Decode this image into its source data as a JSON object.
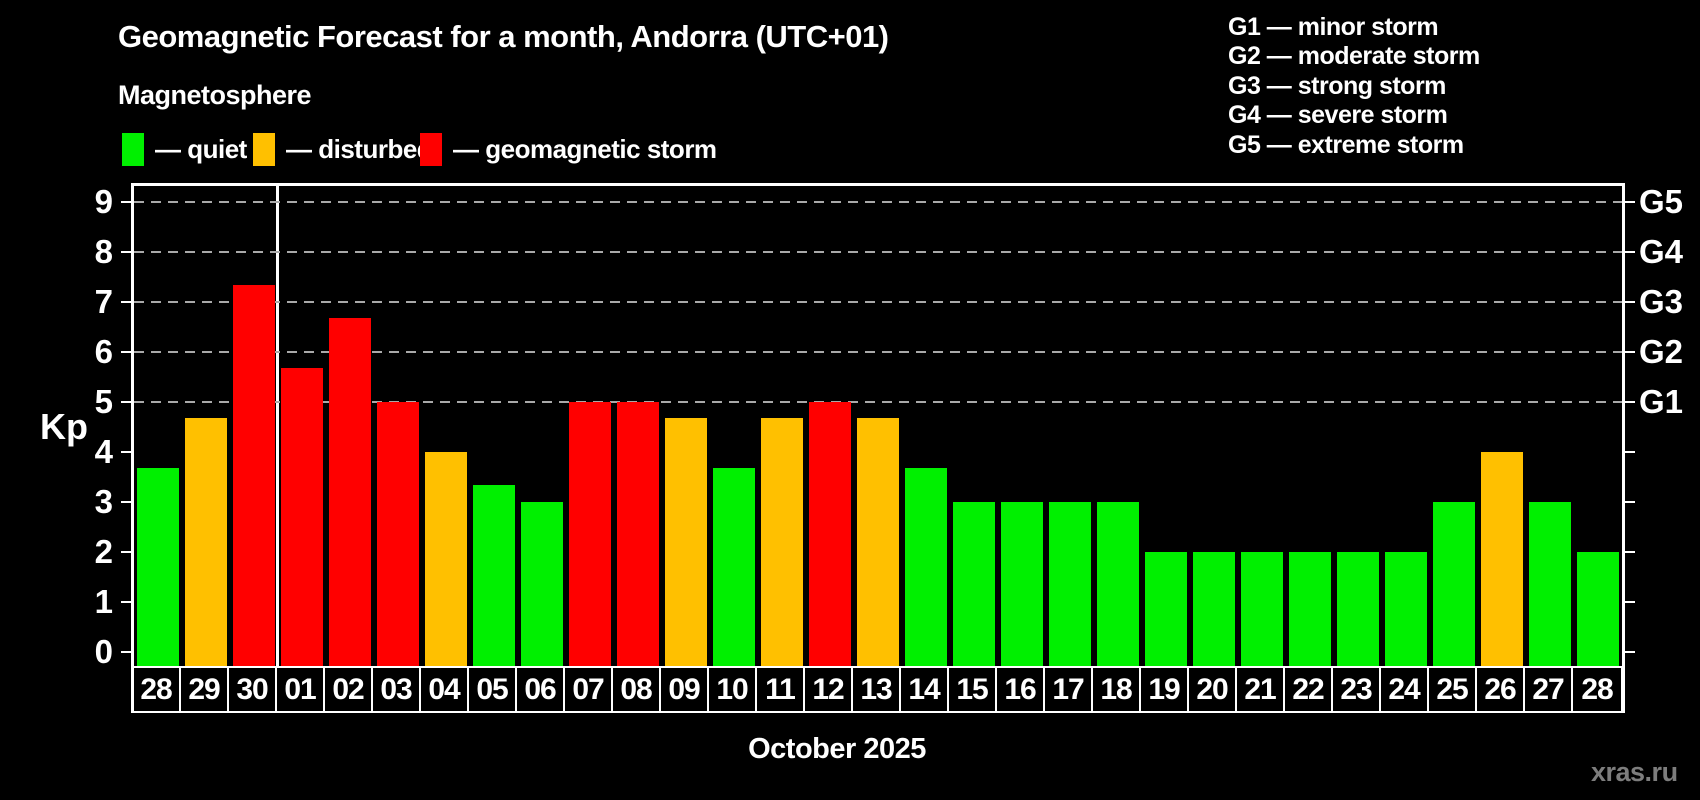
{
  "header": {
    "title": "Geomagnetic Forecast for a month, Andorra (UTC+01)",
    "subtitle": "Magnetosphere",
    "legend": [
      {
        "key": "quiet",
        "label": "— quiet",
        "color": "#00f000"
      },
      {
        "key": "disturbed",
        "label": "— disturbed",
        "color": "#ffc000"
      },
      {
        "key": "storm",
        "label": "— geomagnetic storm",
        "color": "#ff0000"
      }
    ],
    "g_scale_legend": [
      "G1 — minor storm",
      "G2 — moderate storm",
      "G3 — strong storm",
      "G4 — severe storm",
      "G5 — extreme storm"
    ]
  },
  "chart_data": {
    "type": "bar",
    "title": "Geomagnetic Forecast for a month, Andorra (UTC+01)",
    "subtitle": "Magnetosphere",
    "ylabel": "Kp",
    "xlabel": "October 2025",
    "ylim": [
      0,
      9
    ],
    "yticks": [
      0,
      1,
      2,
      3,
      4,
      5,
      6,
      7,
      8,
      9
    ],
    "gridlines_at": [
      5,
      6,
      7,
      8,
      9
    ],
    "grid_style": "dashed",
    "legend_position": "top",
    "right_axis_labels": [
      {
        "value": 5,
        "label": "G1"
      },
      {
        "value": 6,
        "label": "G2"
      },
      {
        "value": 7,
        "label": "G3"
      },
      {
        "value": 8,
        "label": "G4"
      },
      {
        "value": 9,
        "label": "G5"
      }
    ],
    "month_separator_after_index": 2,
    "categories": [
      "28",
      "29",
      "30",
      "01",
      "02",
      "03",
      "04",
      "05",
      "06",
      "07",
      "08",
      "09",
      "10",
      "11",
      "12",
      "13",
      "14",
      "15",
      "16",
      "17",
      "18",
      "19",
      "20",
      "21",
      "22",
      "23",
      "24",
      "25",
      "26",
      "27",
      "28"
    ],
    "values": [
      3.67,
      4.67,
      7.33,
      5.67,
      6.67,
      5.0,
      4.0,
      3.33,
      3.0,
      5.0,
      5.0,
      4.67,
      3.67,
      4.67,
      5.0,
      4.67,
      3.67,
      3.0,
      3.0,
      3.0,
      3.0,
      2.0,
      2.0,
      2.0,
      2.0,
      2.0,
      2.0,
      3.0,
      4.0,
      3.0,
      2.0
    ],
    "statuses": [
      "quiet",
      "disturbed",
      "storm",
      "storm",
      "storm",
      "storm",
      "disturbed",
      "quiet",
      "quiet",
      "storm",
      "storm",
      "disturbed",
      "quiet",
      "disturbed",
      "storm",
      "disturbed",
      "quiet",
      "quiet",
      "quiet",
      "quiet",
      "quiet",
      "quiet",
      "quiet",
      "quiet",
      "quiet",
      "quiet",
      "quiet",
      "quiet",
      "disturbed",
      "quiet",
      "quiet"
    ],
    "colors": {
      "quiet": "#00f000",
      "disturbed": "#ffc000",
      "storm": "#ff0000"
    }
  },
  "footer": {
    "xaxis_title": "October 2025",
    "watermark": "xras.ru"
  }
}
